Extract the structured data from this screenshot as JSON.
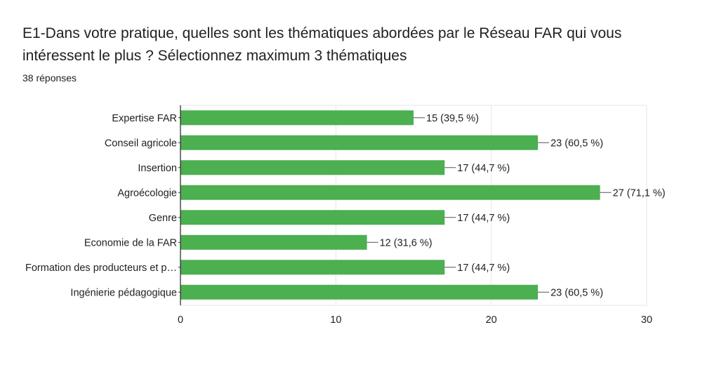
{
  "question": {
    "title": "E1-Dans votre pratique, quelles sont les thématiques abordées par le Réseau FAR qui vous intéressent le plus ? Sélectionnez maximum 3 thématiques",
    "responses": "38 réponses"
  },
  "colors": {
    "bar": "#4caf50",
    "grid": "#e6e6e6",
    "axis": "#333333",
    "text": "#222222"
  },
  "chart_data": {
    "type": "bar",
    "orientation": "horizontal",
    "categories": [
      "Expertise FAR",
      "Conseil agricole",
      "Insertion",
      "Agroécologie",
      "Genre",
      "Economie de la FAR",
      "Formation des producteurs et p…",
      "Ingénierie pédagogique"
    ],
    "values": [
      15,
      23,
      17,
      27,
      17,
      12,
      17,
      23
    ],
    "value_labels": [
      "15 (39,5 %)",
      "23 (60,5 %)",
      "17 (44,7 %)",
      "27 (71,1 %)",
      "17 (44,7 %)",
      "12 (31,6 %)",
      "17 (44,7 %)",
      "23 (60,5 %)"
    ],
    "xlim": [
      0,
      30
    ],
    "xticks": [
      0,
      10,
      20,
      30
    ],
    "grid": true
  }
}
